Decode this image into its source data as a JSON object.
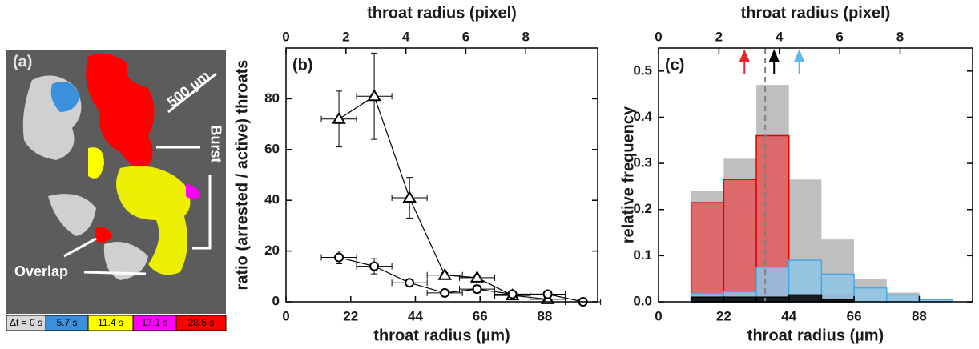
{
  "image_panel": {
    "panel_label": "(a)",
    "scale_bar": "500 µm",
    "burst_label": "Burst",
    "overlap_label": "Overlap",
    "legend": [
      {
        "label": "Δt = 0 s",
        "color": "#d9d9d9"
      },
      {
        "label": "5.7 s",
        "color": "#3b8fdc"
      },
      {
        "label": "11.4 s",
        "color": "#ffff00"
      },
      {
        "label": "17.1 s",
        "color": "#ff00ff"
      },
      {
        "label": "28.5 s",
        "color": "#ff0000"
      }
    ]
  },
  "chart_data": [
    {
      "type": "line",
      "panel_label": "(b)",
      "xlabel": "throat radius (µm)",
      "x2label": "throat radius (pixel)",
      "ylabel": "ratio (arrested / active) throats",
      "xlim": [
        0,
        106
      ],
      "xticks": [
        0,
        22,
        44,
        66,
        88
      ],
      "x2lim": [
        0,
        10.4
      ],
      "x2ticks": [
        0,
        2,
        4,
        6,
        8
      ],
      "ylim": [
        0,
        100
      ],
      "yticks": [
        0,
        20,
        40,
        60,
        80
      ],
      "series": [
        {
          "marker": "triangle",
          "color": "#000000",
          "x": [
            18,
            30,
            42,
            54,
            65,
            77,
            89
          ],
          "values": [
            72,
            81,
            41,
            10.5,
            9.5,
            2.5,
            1
          ],
          "yerr": [
            11,
            17,
            8,
            1,
            1,
            1,
            1
          ],
          "xerr": [
            6,
            6,
            6,
            6,
            6,
            6,
            6
          ]
        },
        {
          "marker": "circle",
          "color": "#000000",
          "x": [
            18,
            30,
            42,
            54,
            65,
            77,
            89,
            101
          ],
          "values": [
            17.5,
            14,
            7.5,
            3.5,
            5,
            3,
            3,
            0
          ],
          "yerr": [
            2.5,
            3,
            1,
            1,
            1.5,
            1,
            1,
            0.5
          ],
          "xerr": [
            6,
            6,
            6,
            6,
            6,
            6,
            6,
            6
          ]
        }
      ]
    },
    {
      "type": "histogram",
      "panel_label": "(c)",
      "xlabel": "throat radius (µm)",
      "x2label": "throat radius (pixel)",
      "ylabel": "relative frequency",
      "xlim": [
        0,
        106
      ],
      "xticks": [
        0,
        22,
        44,
        66,
        88
      ],
      "x2lim": [
        0,
        10.4
      ],
      "x2ticks": [
        0,
        2,
        4,
        6,
        8
      ],
      "ylim": [
        0,
        0.55
      ],
      "yticks": [
        {
          "value": 0,
          "label": "0.0"
        },
        0.1,
        0.2,
        0.3,
        0.4,
        0.5
      ],
      "bins": [
        11,
        22,
        33,
        44,
        55,
        66,
        77,
        88,
        99
      ],
      "series": [
        {
          "color": "#bfbfbf",
          "edgecolor": "#bfbfbf",
          "values": [
            0.24,
            0.31,
            0.47,
            0.265,
            0.135,
            0.05,
            0.02,
            0.005
          ]
        },
        {
          "color": "#e05a5a",
          "edgecolor": "#e00000",
          "values": [
            0.215,
            0.265,
            0.36,
            0.015,
            0.015,
            0,
            0,
            0
          ]
        },
        {
          "color": "#8ec5e8",
          "edgecolor": "#4aa8e0",
          "values": [
            0.018,
            0.022,
            0.075,
            0.09,
            0.06,
            0.03,
            0.015,
            0.005
          ]
        },
        {
          "color": "#000000",
          "edgecolor": "#000000",
          "values": [
            0.01,
            0.01,
            0.01,
            0.015,
            0.005,
            0,
            0,
            0
          ]
        }
      ],
      "arrows": [
        {
          "x": 29,
          "color": "#e8262a"
        },
        {
          "x": 39,
          "color": "#000000"
        },
        {
          "x": 47.5,
          "color": "#5bb8ec"
        }
      ],
      "vline": {
        "x": 36,
        "color": "#808080"
      }
    }
  ]
}
